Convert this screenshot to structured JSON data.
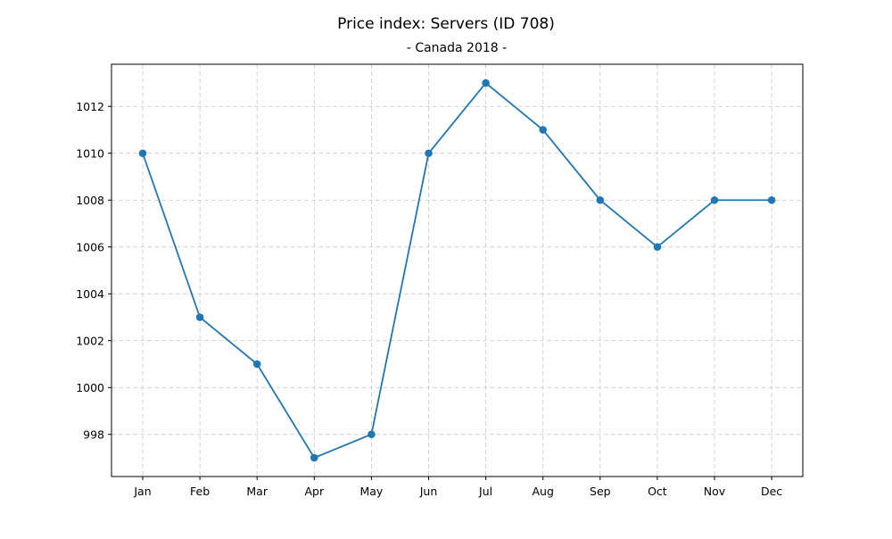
{
  "chart_data": {
    "type": "line",
    "title": "Price index: Servers (ID 708)",
    "subtitle": "- Canada 2018 -",
    "xlabel": "",
    "ylabel": "",
    "categories": [
      "Jan",
      "Feb",
      "Mar",
      "Apr",
      "May",
      "Jun",
      "Jul",
      "Aug",
      "Sep",
      "Oct",
      "Nov",
      "Dec"
    ],
    "series": [
      {
        "values": [
          1010,
          1003,
          1001,
          997,
          998,
          1010,
          1013,
          1011,
          1008,
          1006,
          1008,
          1008
        ],
        "color": "#1f77b4",
        "marker": "circle"
      }
    ],
    "ylim": [
      996.2,
      1013.8
    ],
    "yticks": [
      998,
      1000,
      1002,
      1004,
      1006,
      1008,
      1010,
      1012
    ],
    "grid": true,
    "legend": "none"
  }
}
